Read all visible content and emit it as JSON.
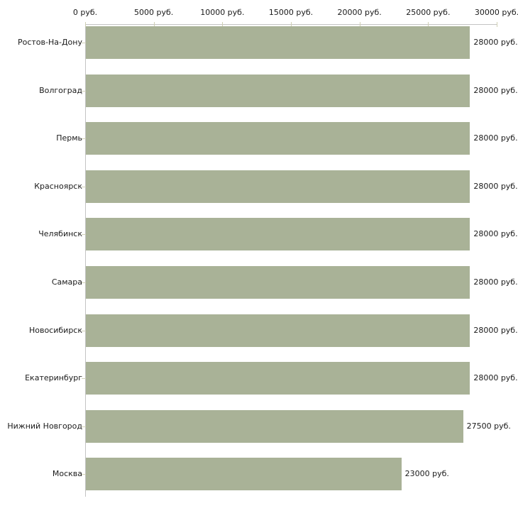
{
  "chart_data": {
    "type": "bar",
    "orientation": "horizontal",
    "title": "",
    "xlabel": "",
    "ylabel": "",
    "grid": false,
    "legend": false,
    "unit": "руб.",
    "categories": [
      "Ростов-На-Дону",
      "Волгоград",
      "Пермь",
      "Красноярск",
      "Челябинск",
      "Самара",
      "Новосибирск",
      "Екатеринбург",
      "Нижний Новгород",
      "Москва"
    ],
    "values": [
      28000,
      28000,
      28000,
      28000,
      28000,
      28000,
      28000,
      28000,
      27500,
      23000
    ],
    "value_labels": [
      "28000 руб.",
      "28000 руб.",
      "28000 руб.",
      "28000 руб.",
      "28000 руб.",
      "28000 руб.",
      "28000 руб.",
      "28000 руб.",
      "27500 руб.",
      "23000 руб."
    ],
    "x_axis": {
      "position": "top",
      "min": 0,
      "max": 30000,
      "ticks": [
        0,
        5000,
        10000,
        15000,
        20000,
        25000,
        30000
      ],
      "tick_labels": [
        "0 руб.",
        "5000 руб.",
        "10000 руб.",
        "15000 руб.",
        "20000 руб.",
        "25000 руб.",
        "30000 руб."
      ]
    },
    "colors": {
      "bar": "#a9b297",
      "axis_line": "#c3c3c3",
      "x_tick": "#cfcfb4",
      "y_tick": "#d2d2ba",
      "text": "#1a1a1a",
      "background": "#ffffff"
    }
  }
}
